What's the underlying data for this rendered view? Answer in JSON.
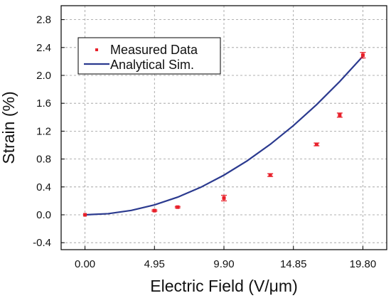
{
  "chart_data": {
    "type": "scatter",
    "xlabel": "Electric Field (V/μm)",
    "ylabel": "Strain (%)",
    "xlim": [
      -1.7,
      21.5
    ],
    "ylim": [
      -0.5,
      3.0
    ],
    "x_ticks": [
      0.0,
      4.95,
      9.9,
      14.85,
      19.8
    ],
    "x_tick_labels": [
      "0.00",
      "4.95",
      "9.90",
      "14.85",
      "19.80"
    ],
    "y_ticks": [
      -0.4,
      0.0,
      0.4,
      0.8,
      1.2,
      1.6,
      2.0,
      2.4,
      2.8
    ],
    "y_tick_labels": [
      "-0.4",
      "0.0",
      "0.4",
      "0.8",
      "1.2",
      "1.6",
      "2.0",
      "2.4",
      "2.8"
    ],
    "grid": true,
    "legend_position": "top-left",
    "series": [
      {
        "name": "Measured Data",
        "kind": "scatter-errorbar",
        "color": "#e8202a",
        "x": [
          0.0,
          4.95,
          6.6,
          9.9,
          13.2,
          16.5,
          18.15,
          19.8
        ],
        "y": [
          0.0,
          0.06,
          0.11,
          0.24,
          0.57,
          1.01,
          1.43,
          2.29
        ],
        "yerr": [
          0.0,
          0.01,
          0.01,
          0.04,
          0.02,
          0.02,
          0.03,
          0.04
        ]
      },
      {
        "name": "Analytical Sim.",
        "kind": "line",
        "color": "#2b3a8f",
        "x": [
          0.0,
          1.65,
          3.3,
          4.95,
          6.6,
          8.25,
          9.9,
          11.55,
          13.2,
          14.85,
          16.5,
          18.15,
          19.8
        ],
        "y": [
          0.0,
          0.016,
          0.063,
          0.142,
          0.253,
          0.395,
          0.569,
          0.774,
          1.011,
          1.28,
          1.58,
          1.912,
          2.275
        ]
      }
    ]
  }
}
